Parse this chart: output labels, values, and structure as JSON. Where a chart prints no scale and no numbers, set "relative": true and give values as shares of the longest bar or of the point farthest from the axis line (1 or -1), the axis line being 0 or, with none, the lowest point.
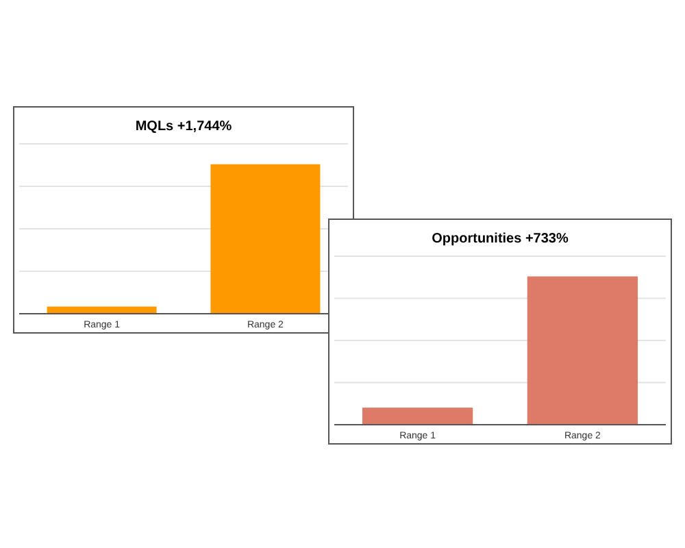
{
  "chart_data": [
    {
      "type": "bar",
      "title": "MQLs +1,744%",
      "categories": [
        "Range 1",
        "Range 2"
      ],
      "values": [
        0.048,
        1
      ],
      "color": "#ff9900",
      "relative": true,
      "grid": "y"
    },
    {
      "type": "bar",
      "title": "Opportunities +733%",
      "categories": [
        "Range 1",
        "Range 2"
      ],
      "values": [
        0.115,
        1
      ],
      "color": "#dd7b68",
      "relative": true,
      "grid": "y"
    }
  ]
}
